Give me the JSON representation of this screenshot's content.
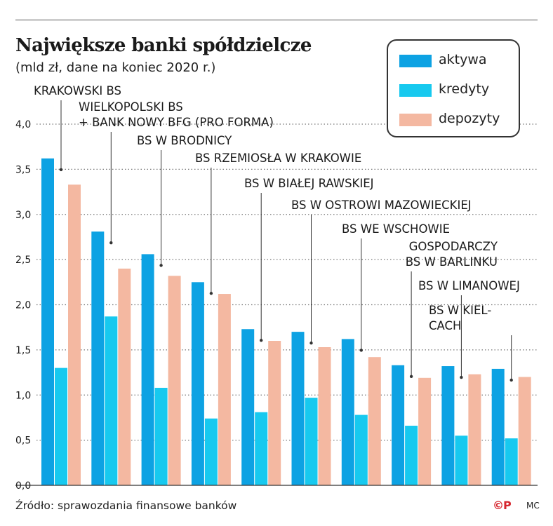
{
  "header": {
    "title": "Największe banki spółdzielcze",
    "subtitle": "(mld zł, dane na koniec 2020 r.)"
  },
  "footer": {
    "source": "Źródło:  sprawozdania finansowe banków",
    "copyright": "©P",
    "author": "MC"
  },
  "colors": {
    "aktywa": "#0da2e3",
    "kredyty": "#17c9ef",
    "depozyty": "#f4b8a1",
    "grid": "#777777",
    "text": "#1a1a1a"
  },
  "chart_data": {
    "type": "bar",
    "categories": [
      "KRAKOWSKI BS",
      "WIELKOPOLSKI BS\n+ BANK NOWY BFG (PRO FORMA)",
      "BS W BRODNICY",
      "BS RZEMIOSŁA W KRAKOWIE",
      "BS W BIAŁEJ RAWSKIEJ",
      "BS W OSTROWI MAZOWIECKIEJ",
      "BS WE WSCHOWIE",
      "GOSPODARCZY\nBS W BARLINKU",
      "BS W LIMANOWEJ",
      "BS W KIEL-\nCACH"
    ],
    "series": [
      {
        "name": "aktywa",
        "values": [
          3.62,
          2.81,
          2.56,
          2.25,
          1.73,
          1.7,
          1.62,
          1.33,
          1.32,
          1.29
        ]
      },
      {
        "name": "kredyty",
        "values": [
          1.3,
          1.87,
          1.08,
          0.74,
          0.81,
          0.97,
          0.78,
          0.66,
          0.55,
          0.52
        ]
      },
      {
        "name": "depozyty",
        "values": [
          3.33,
          2.4,
          2.32,
          2.12,
          1.6,
          1.53,
          1.42,
          1.19,
          1.23,
          1.2
        ]
      }
    ],
    "y_ticks": [
      "0,0",
      "0,5",
      "1,0",
      "1,5",
      "2,0",
      "2,5",
      "3,0",
      "3,5",
      "4,0"
    ],
    "ylim": [
      0,
      4.0
    ],
    "grid": true,
    "legend_position": "top-right"
  }
}
